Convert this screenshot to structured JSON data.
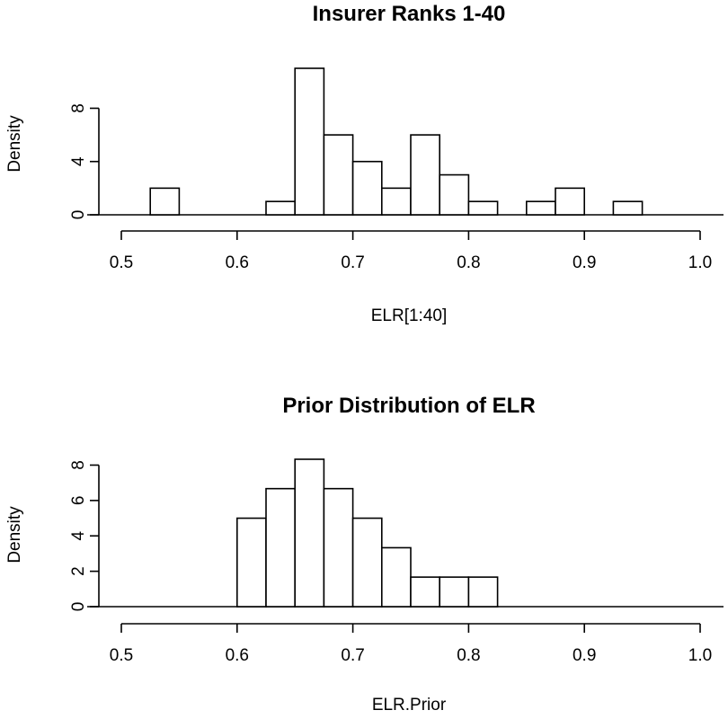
{
  "chart_data": [
    {
      "type": "histogram",
      "title": "Insurer Ranks 1-40",
      "xlabel": "ELR[1:40]",
      "ylabel": "Density",
      "xlim": [
        0.5,
        1.0
      ],
      "ylim": [
        0,
        11
      ],
      "x_ticks": [
        "0.5",
        "0.6",
        "0.7",
        "0.8",
        "0.9",
        "1.0"
      ],
      "y_ticks": [
        "0",
        "4",
        "8"
      ],
      "grid": false,
      "bins": [
        {
          "x0": 0.525,
          "x1": 0.55,
          "density": 2
        },
        {
          "x0": 0.625,
          "x1": 0.65,
          "density": 1
        },
        {
          "x0": 0.65,
          "x1": 0.675,
          "density": 11
        },
        {
          "x0": 0.675,
          "x1": 0.7,
          "density": 6
        },
        {
          "x0": 0.7,
          "x1": 0.725,
          "density": 4
        },
        {
          "x0": 0.725,
          "x1": 0.75,
          "density": 2
        },
        {
          "x0": 0.75,
          "x1": 0.775,
          "density": 6
        },
        {
          "x0": 0.775,
          "x1": 0.8,
          "density": 3
        },
        {
          "x0": 0.8,
          "x1": 0.825,
          "density": 1
        },
        {
          "x0": 0.85,
          "x1": 0.875,
          "density": 1
        },
        {
          "x0": 0.875,
          "x1": 0.9,
          "density": 2
        },
        {
          "x0": 0.925,
          "x1": 0.95,
          "density": 1
        }
      ]
    },
    {
      "type": "histogram",
      "title": "Prior Distribution of ELR",
      "xlabel": "ELR.Prior",
      "ylabel": "Density",
      "xlim": [
        0.5,
        1.0
      ],
      "ylim": [
        0,
        8.33
      ],
      "x_ticks": [
        "0.5",
        "0.6",
        "0.7",
        "0.8",
        "0.9",
        "1.0"
      ],
      "y_ticks": [
        "0",
        "2",
        "4",
        "6",
        "8"
      ],
      "grid": false,
      "bins": [
        {
          "x0": 0.6,
          "x1": 0.625,
          "density": 5.0
        },
        {
          "x0": 0.625,
          "x1": 0.65,
          "density": 6.67
        },
        {
          "x0": 0.65,
          "x1": 0.675,
          "density": 8.33
        },
        {
          "x0": 0.675,
          "x1": 0.7,
          "density": 6.67
        },
        {
          "x0": 0.7,
          "x1": 0.725,
          "density": 5.0
        },
        {
          "x0": 0.725,
          "x1": 0.75,
          "density": 3.33
        },
        {
          "x0": 0.75,
          "x1": 0.775,
          "density": 1.67
        },
        {
          "x0": 0.775,
          "x1": 0.8,
          "density": 1.67
        },
        {
          "x0": 0.8,
          "x1": 0.825,
          "density": 1.67
        }
      ]
    }
  ]
}
